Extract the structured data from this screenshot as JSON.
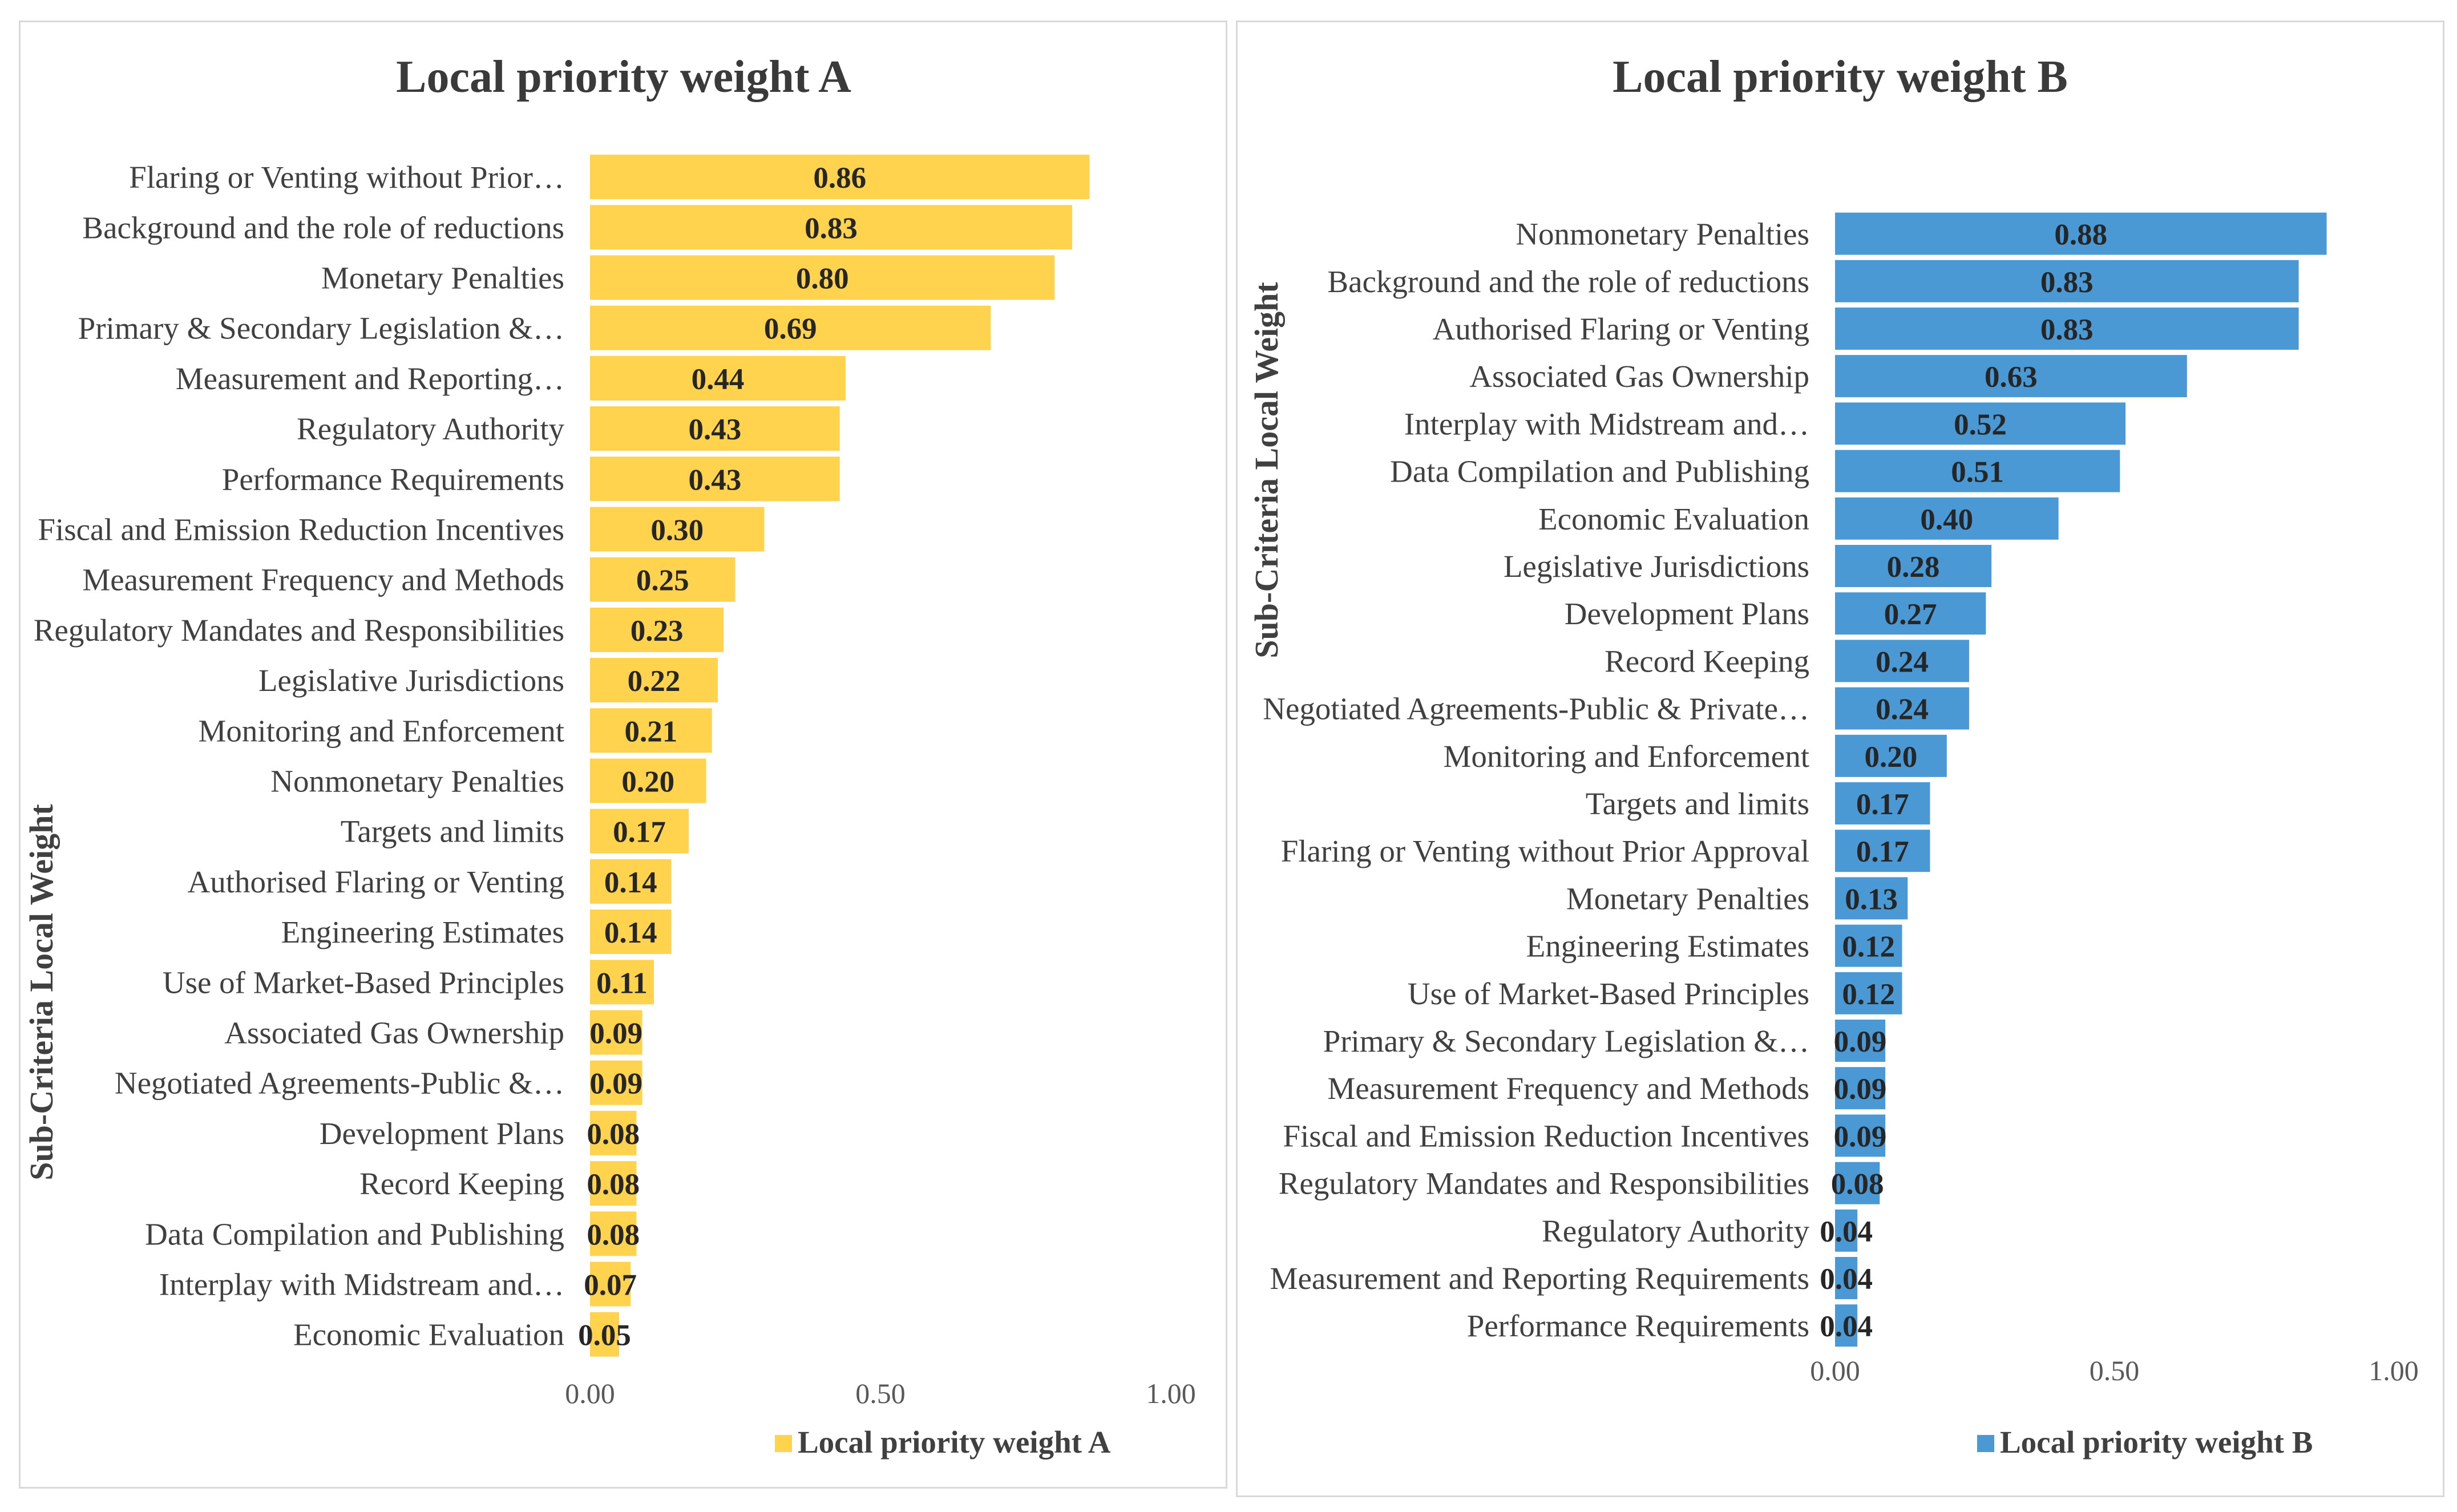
{
  "chart_data": [
    {
      "type": "bar",
      "orientation": "horizontal",
      "title": "Local priority weight A",
      "ylabel": "Sub-Criteria Local Weight",
      "xlabel": "",
      "xlim": [
        0,
        1
      ],
      "xticks": [
        "0.00",
        "0.50",
        "1.00"
      ],
      "legend": "bottom",
      "color": "#FFD34E",
      "series": [
        {
          "name": "Local priority weight A",
          "values": [
            0.86,
            0.83,
            0.8,
            0.69,
            0.44,
            0.43,
            0.43,
            0.3,
            0.25,
            0.23,
            0.22,
            0.21,
            0.2,
            0.17,
            0.14,
            0.14,
            0.11,
            0.09,
            0.09,
            0.08,
            0.08,
            0.08,
            0.07,
            0.05
          ]
        }
      ],
      "categories": [
        "Flaring or Venting without Prior…",
        "Background and the role of reductions",
        "Monetary Penalties",
        "Primary & Secondary Legislation &…",
        "Measurement and Reporting…",
        "Regulatory Authority",
        "Performance Requirements",
        "Fiscal and Emission Reduction Incentives",
        "Measurement Frequency and Methods",
        "Regulatory Mandates and Responsibilities",
        "Legislative Jurisdictions",
        "Monitoring and Enforcement",
        "Nonmonetary Penalties",
        "Targets and limits",
        "Authorised Flaring or Venting",
        "Engineering Estimates",
        "Use of Market-Based Principles",
        "Associated Gas Ownership",
        "Negotiated Agreements-Public &…",
        "Development Plans",
        "Record Keeping",
        "Data Compilation and Publishing",
        "Interplay with Midstream and…",
        "Economic Evaluation"
      ],
      "labels": [
        "0.86",
        "0.83",
        "0.80",
        "0.69",
        "0.44",
        "0.43",
        "0.43",
        "0.30",
        "0.25",
        "0.23",
        "0.22",
        "0.21",
        "0.20",
        "0.17",
        "0.14",
        "0.14",
        "0.11",
        "0.09",
        "0.09",
        "0.08",
        "0.08",
        "0.08",
        "0.07",
        "0.05"
      ]
    },
    {
      "type": "bar",
      "orientation": "horizontal",
      "title": "Local priority weight B",
      "ylabel": "Sub-Criteria Local Weight",
      "xlabel": "",
      "xlim": [
        0,
        1
      ],
      "xticks": [
        "0.00",
        "0.50",
        "1.00"
      ],
      "legend": "bottom",
      "color": "#4A98D4",
      "series": [
        {
          "name": "Local priority weight B",
          "values": [
            0.88,
            0.83,
            0.83,
            0.63,
            0.52,
            0.51,
            0.4,
            0.28,
            0.27,
            0.24,
            0.24,
            0.2,
            0.17,
            0.17,
            0.13,
            0.12,
            0.12,
            0.09,
            0.09,
            0.09,
            0.08,
            0.04,
            0.04,
            0.04
          ]
        }
      ],
      "categories": [
        "Nonmonetary Penalties",
        "Background and the role of reductions",
        "Authorised Flaring or Venting",
        "Associated Gas Ownership",
        "Interplay with Midstream and…",
        "Data Compilation and Publishing",
        "Economic Evaluation",
        "Legislative Jurisdictions",
        "Development Plans",
        "Record Keeping",
        "Negotiated Agreements-Public & Private…",
        "Monitoring and Enforcement",
        "Targets and limits",
        "Flaring or Venting without Prior Approval",
        "Monetary Penalties",
        "Engineering Estimates",
        "Use of Market-Based Principles",
        "Primary & Secondary Legislation &…",
        "Measurement Frequency and Methods",
        "Fiscal and Emission Reduction Incentives",
        "Regulatory Mandates and Responsibilities",
        "Regulatory Authority",
        "Measurement and Reporting Requirements",
        "Performance Requirements"
      ],
      "labels": [
        "0.88",
        "0.83",
        "0.83",
        "0.63",
        "0.52",
        "0.51",
        "0.40",
        "0.28",
        "0.27",
        "0.24",
        "0.24",
        "0.20",
        "0.17",
        "0.17",
        "0.13",
        "0.12",
        "0.12",
        "0.09",
        "0.09",
        "0.09",
        "0.08",
        "0.04",
        "0.04",
        "0.04"
      ]
    }
  ]
}
